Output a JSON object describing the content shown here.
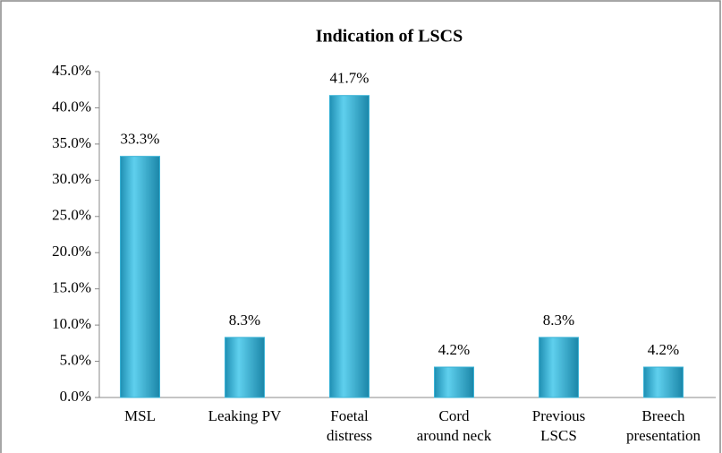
{
  "chart_data": {
    "type": "bar",
    "title": "Indication of LSCS",
    "categories": [
      "MSL",
      "Leaking PV",
      "Foetal\ndistress",
      "Cord\naround neck",
      "Previous\nLSCS",
      "Breech\npresentation"
    ],
    "values": [
      33.3,
      8.3,
      41.7,
      4.2,
      8.3,
      4.2
    ],
    "value_labels": [
      "33.3%",
      "8.3%",
      "41.7%",
      "4.2%",
      "8.3%",
      "4.2%"
    ],
    "color": "#3bb3d6",
    "ylim": [
      0,
      45
    ],
    "yticks": [
      {
        "value": 0,
        "label": "0.0%"
      },
      {
        "value": 5,
        "label": "5.0%"
      },
      {
        "value": 10,
        "label": "10.0%"
      },
      {
        "value": 15,
        "label": "15.0%"
      },
      {
        "value": 20,
        "label": "20.0%"
      },
      {
        "value": 25,
        "label": "25.0%"
      },
      {
        "value": 30,
        "label": "30.0%"
      },
      {
        "value": 35,
        "label": "35.0%"
      },
      {
        "value": 40,
        "label": "40.0%"
      },
      {
        "value": 45,
        "label": "45.0%"
      }
    ],
    "grid": false
  }
}
